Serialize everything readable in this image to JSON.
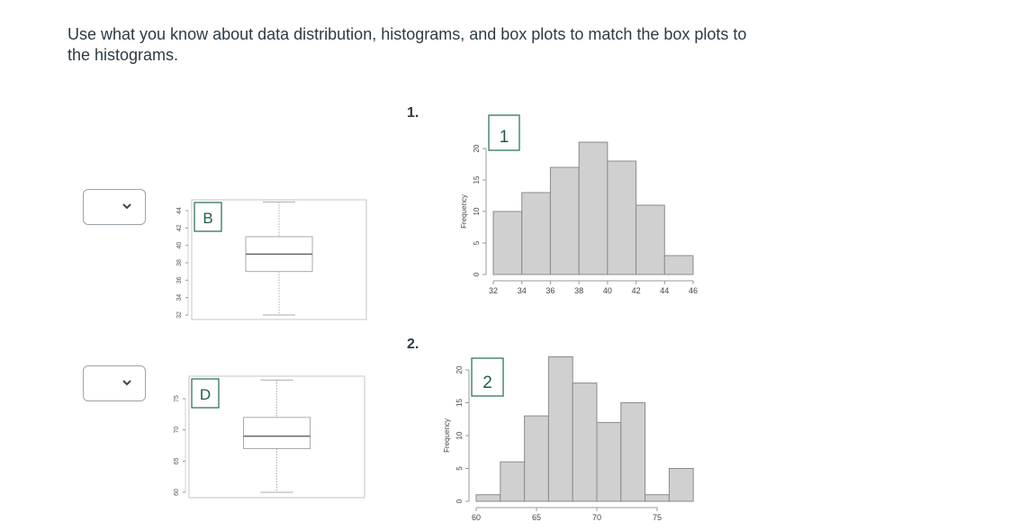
{
  "prompt": "Use what you know about data distribution, histograms, and box plots to match the box plots to the histograms.",
  "colors": {
    "label_box_border": "#1f6b55",
    "label_text": "#1f5c4b",
    "bar_fill": "#d0d0d0",
    "bar_stroke": "#8a8a8a",
    "axis": "#7a7a7a",
    "text": "#2d3b45"
  },
  "matches": [
    {
      "dropdown": {
        "selected": "",
        "icon": "chevron-down-icon"
      },
      "boxplot_label": "B"
    },
    {
      "dropdown": {
        "selected": "",
        "icon": "chevron-down-icon"
      },
      "boxplot_label": "D"
    }
  ],
  "histograms": [
    {
      "number_label": "1.",
      "tag": "1",
      "ylabel": "Frequency"
    },
    {
      "number_label": "2.",
      "tag": "2",
      "ylabel": "Frequency"
    }
  ],
  "chart_data": [
    {
      "type": "boxplot",
      "label": "B",
      "orientation": "vertical",
      "yticks": [
        32,
        34,
        36,
        38,
        40,
        42,
        44
      ],
      "ylim": [
        32,
        45
      ],
      "min": 32,
      "q1": 37,
      "median": 39,
      "q3": 41,
      "max": 45
    },
    {
      "type": "boxplot",
      "label": "D",
      "orientation": "vertical",
      "yticks": [
        60,
        65,
        70,
        75
      ],
      "ylim": [
        60,
        78
      ],
      "min": 60,
      "q1": 67,
      "median": 69,
      "q3": 72,
      "max": 78
    },
    {
      "type": "bar",
      "title": "1",
      "xlabel": "",
      "ylabel": "Frequency",
      "bin_edges": [
        32,
        34,
        36,
        38,
        40,
        42,
        44,
        46
      ],
      "values": [
        10,
        13,
        17,
        21,
        18,
        11,
        3
      ],
      "xticks": [
        32,
        34,
        36,
        38,
        40,
        42,
        44,
        46
      ],
      "yticks": [
        0,
        5,
        10,
        15,
        20
      ],
      "grid": false
    },
    {
      "type": "bar",
      "title": "2",
      "xlabel": "",
      "ylabel": "Frequency",
      "bin_edges": [
        60,
        62,
        64,
        66,
        68,
        70,
        72,
        74,
        76,
        78
      ],
      "values": [
        1,
        6,
        13,
        22,
        18,
        12,
        15,
        1,
        5
      ],
      "xticks": [
        60,
        65,
        70,
        75
      ],
      "yticks": [
        0,
        5,
        10,
        15,
        20
      ],
      "grid": false
    }
  ]
}
